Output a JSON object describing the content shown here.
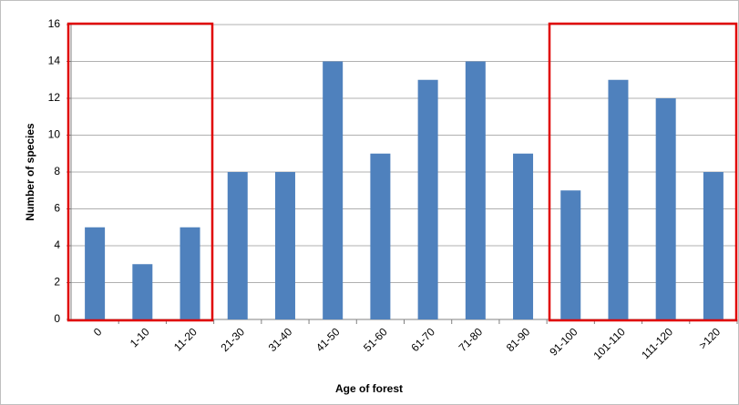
{
  "chart_data": {
    "type": "bar",
    "x_label": "Age of forest",
    "y_label": "Number of species",
    "categories": [
      "0",
      "1-10",
      "11-20",
      "21-30",
      "31-40",
      "41-50",
      "51-60",
      "61-70",
      "71-80",
      "81-90",
      "91-100",
      "101-110",
      "111-120",
      ">120"
    ],
    "values": [
      5,
      3,
      5,
      8,
      8,
      14,
      9,
      13,
      14,
      9,
      7,
      13,
      12,
      8
    ],
    "color": "#4f81bd",
    "ylim": [
      0,
      16
    ],
    "yticks": [
      0,
      2,
      4,
      6,
      8,
      10,
      12,
      14,
      16
    ],
    "grid": true
  }
}
